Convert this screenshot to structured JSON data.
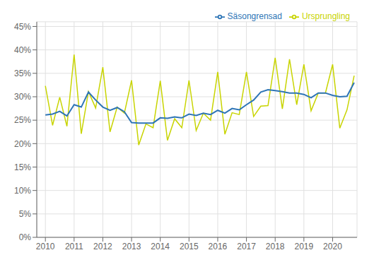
{
  "chart_data": {
    "type": "line",
    "title": "",
    "x": [
      2010,
      2010.25,
      2010.5,
      2010.75,
      2011,
      2011.25,
      2011.5,
      2011.75,
      2012,
      2012.25,
      2012.5,
      2012.75,
      2013,
      2013.25,
      2013.5,
      2013.75,
      2014,
      2014.25,
      2014.5,
      2014.75,
      2015,
      2015.25,
      2015.5,
      2015.75,
      2016,
      2016.25,
      2016.5,
      2016.75,
      2017,
      2017.25,
      2017.5,
      2017.75,
      2018,
      2018.25,
      2018.5,
      2018.75,
      2019,
      2019.25,
      2019.5,
      2019.75,
      2020,
      2020.25,
      2020.5,
      2020.75
    ],
    "series": [
      {
        "name": "Ursprungling",
        "color": "#c8d400",
        "values": [
          0.323,
          0.239,
          0.299,
          0.237,
          0.39,
          0.221,
          0.311,
          0.276,
          0.363,
          0.225,
          0.278,
          0.265,
          0.335,
          0.197,
          0.242,
          0.234,
          0.334,
          0.207,
          0.253,
          0.234,
          0.335,
          0.228,
          0.265,
          0.25,
          0.353,
          0.22,
          0.266,
          0.262,
          0.353,
          0.258,
          0.28,
          0.281,
          0.383,
          0.274,
          0.38,
          0.283,
          0.369,
          0.27,
          0.308,
          0.308,
          0.369,
          0.233,
          0.272,
          0.345
        ]
      },
      {
        "name": "Säsongrensad",
        "color": "#2e75b6",
        "values": [
          0.261,
          0.263,
          0.269,
          0.259,
          0.283,
          0.278,
          0.31,
          0.293,
          0.278,
          0.271,
          0.277,
          0.268,
          0.245,
          0.244,
          0.244,
          0.244,
          0.255,
          0.254,
          0.257,
          0.255,
          0.263,
          0.26,
          0.265,
          0.262,
          0.271,
          0.265,
          0.275,
          0.272,
          0.283,
          0.293,
          0.31,
          0.315,
          0.313,
          0.311,
          0.308,
          0.308,
          0.305,
          0.298,
          0.308,
          0.308,
          0.303,
          0.3,
          0.301,
          0.33
        ]
      }
    ],
    "xlim": [
      2009.7,
      2020.85
    ],
    "xticks": [
      2010,
      2011,
      2012,
      2013,
      2014,
      2015,
      2016,
      2017,
      2018,
      2019,
      2020
    ],
    "ylim": [
      0,
      0.46
    ],
    "yticks": [
      {
        "value": 0.0,
        "label": "0%"
      },
      {
        "value": 0.05,
        "label": "5%"
      },
      {
        "value": 0.1,
        "label": "10%"
      },
      {
        "value": 0.15,
        "label": "15%"
      },
      {
        "value": 0.2,
        "label": "20%"
      },
      {
        "value": 0.25,
        "label": "25%"
      },
      {
        "value": 0.3,
        "label": "30%"
      },
      {
        "value": 0.35,
        "label": "35%"
      },
      {
        "value": 0.4,
        "label": "40%"
      },
      {
        "value": 0.45,
        "label": "45%"
      }
    ],
    "grid": true,
    "legend": "upper right"
  }
}
